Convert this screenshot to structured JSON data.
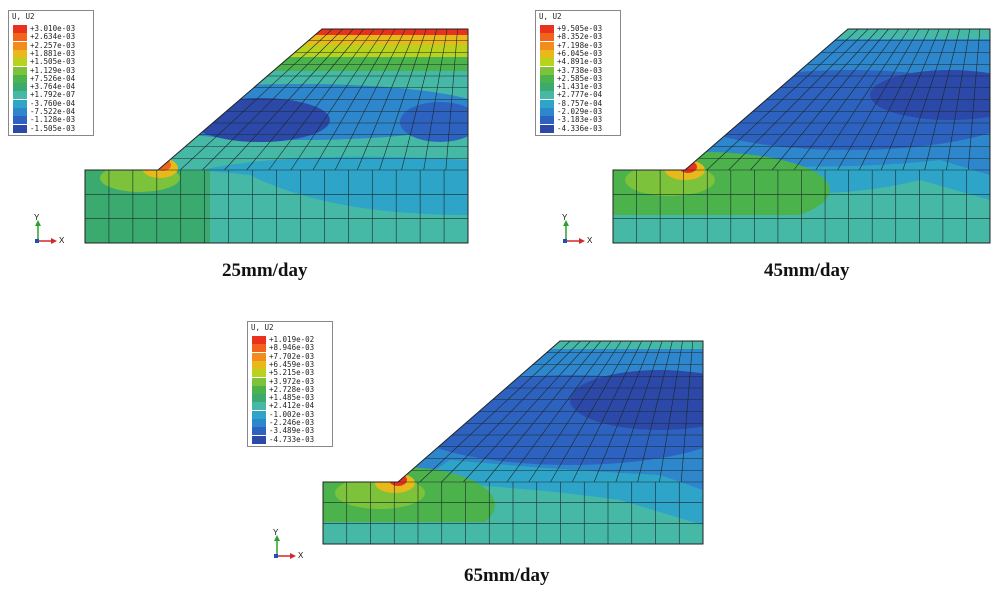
{
  "legend_title": "U, U2",
  "axis_x": "X",
  "axis_y": "Y",
  "colors": [
    "#e8321e",
    "#f2641c",
    "#f28c1c",
    "#e8b91a",
    "#b8d21e",
    "#7cc23a",
    "#4cb24c",
    "#3aaa6e",
    "#46b8a6",
    "#2ea4c8",
    "#2e86cc",
    "#2e62c0",
    "#2c48a8"
  ],
  "panels": [
    {
      "caption": "25mm/day",
      "legend": [
        "+3.010e-03",
        "+2.634e-03",
        "+2.257e-03",
        "+1.881e-03",
        "+1.505e-03",
        "+1.129e-03",
        "+7.526e-04",
        "+3.764e-04",
        "+1.792e-07",
        "-3.760e-04",
        "-7.522e-04",
        "-1.128e-03",
        "-1.505e-03"
      ]
    },
    {
      "caption": "45mm/day",
      "legend": [
        "+9.505e-03",
        "+8.352e-03",
        "+7.198e-03",
        "+6.045e-03",
        "+4.891e-03",
        "+3.738e-03",
        "+2.585e-03",
        "+1.431e-03",
        "+2.777e-04",
        "-8.757e-04",
        "-2.029e-03",
        "-3.183e-03",
        "-4.336e-03"
      ]
    },
    {
      "caption": "65mm/day",
      "legend": [
        "+1.019e-02",
        "+8.946e-03",
        "+7.702e-03",
        "+6.459e-03",
        "+5.215e-03",
        "+3.972e-03",
        "+2.728e-03",
        "+1.485e-03",
        "+2.412e-04",
        "-1.002e-03",
        "-2.246e-03",
        "-3.489e-03",
        "-4.733e-03"
      ]
    }
  ]
}
